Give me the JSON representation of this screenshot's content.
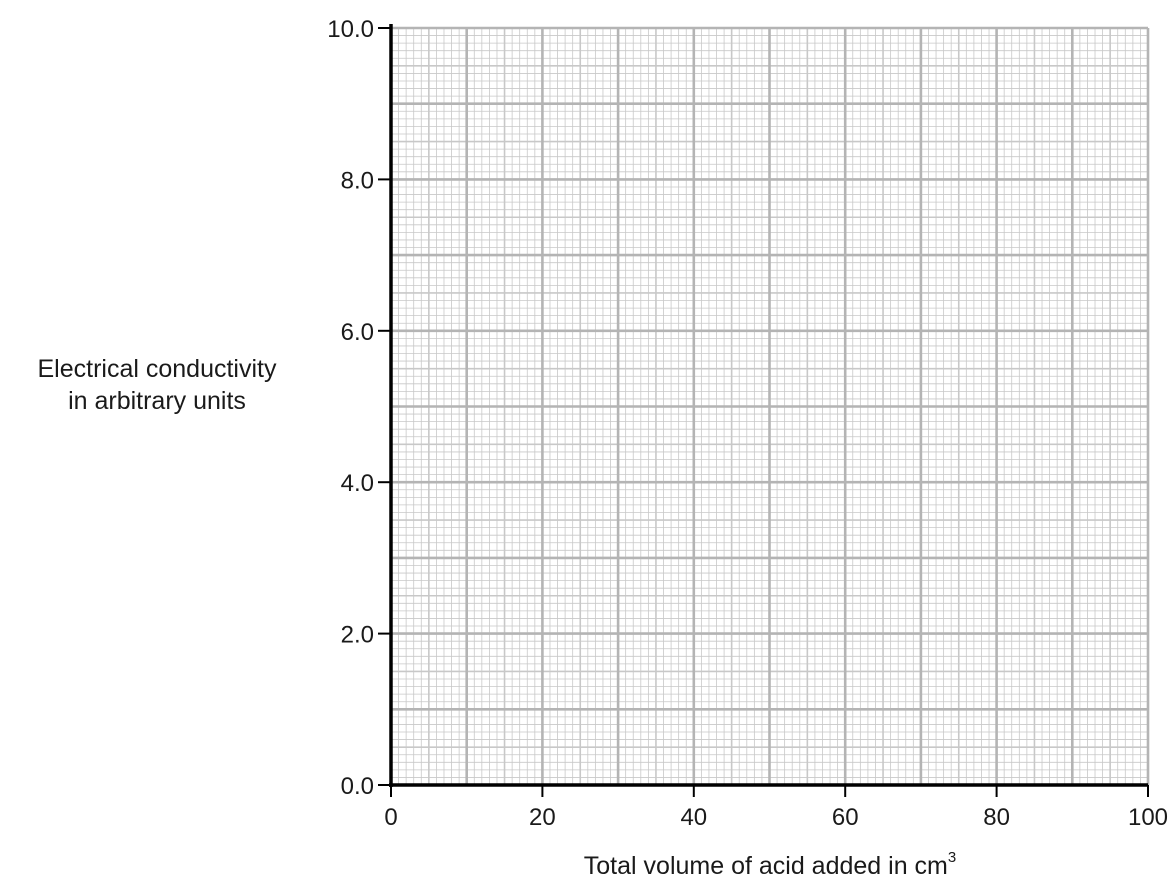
{
  "chart_data": {
    "type": "scatter",
    "title": "",
    "series": [],
    "xlabel": "Total volume of acid added in cm",
    "xlabel_superscript": "3",
    "ylabel_lines": [
      "Electrical conductivity",
      "in arbitrary units"
    ],
    "xlim": [
      0,
      100
    ],
    "ylim": [
      0,
      10
    ],
    "x_ticks": [
      "0",
      "20",
      "40",
      "60",
      "80",
      "100"
    ],
    "y_ticks": [
      "0.0",
      "2.0",
      "4.0",
      "6.0",
      "8.0",
      "10.0"
    ],
    "grid": true,
    "grid_colors": {
      "minor": "#c8c8c8",
      "major": "#b4b4b4",
      "axis": "#000000"
    }
  }
}
